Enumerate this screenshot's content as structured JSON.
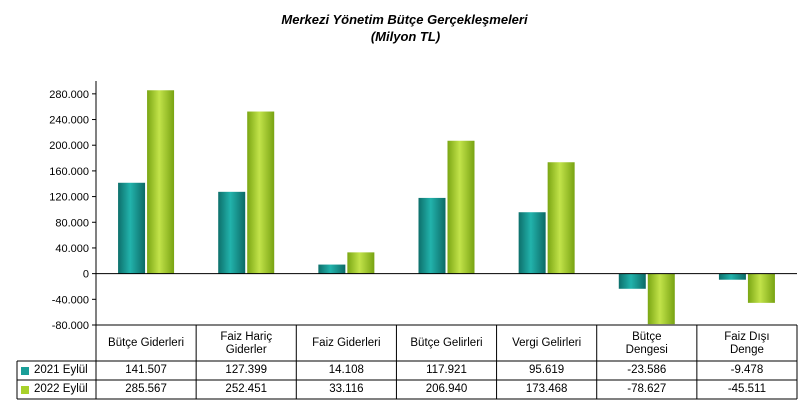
{
  "chart_data": {
    "type": "bar",
    "title": "Merkezi Yönetim Bütçe Gerçekleşmeleri",
    "subtitle": "(Milyon TL)",
    "categories": [
      "Bütçe Giderleri",
      "Faiz Hariç Giderler",
      "Faiz Giderleri",
      "Bütçe Gelirleri",
      "Vergi Gelirleri",
      "Bütçe Dengesi",
      "Faiz Dışı Denge"
    ],
    "series": [
      {
        "name": "2021 Eylül",
        "values": [
          141507,
          127399,
          14108,
          117921,
          95619,
          -23586,
          -9478
        ],
        "labels": [
          "141.507",
          "127.399",
          "14.108",
          "117.921",
          "95.619",
          "-23.586",
          "-9.478"
        ],
        "color": "#1a9e98"
      },
      {
        "name": "2022 Eylül",
        "values": [
          285567,
          252451,
          33116,
          206940,
          173468,
          -78627,
          -45511
        ],
        "labels": [
          "285.567",
          "252.451",
          "33.116",
          "206.940",
          "173.468",
          "-78.627",
          "-45.511"
        ],
        "color": "#a8d12a"
      }
    ],
    "ylim": [
      -80000,
      280000
    ],
    "yticks": [
      280000,
      240000,
      200000,
      160000,
      120000,
      80000,
      40000,
      0,
      -40000,
      -80000
    ],
    "ytick_labels": [
      "280.000",
      "240.000",
      "200.000",
      "160.000",
      "120.000",
      "80.000",
      "40.000",
      "0",
      "-40.000",
      "-80.000"
    ],
    "grid": false,
    "legend": "data-table"
  }
}
